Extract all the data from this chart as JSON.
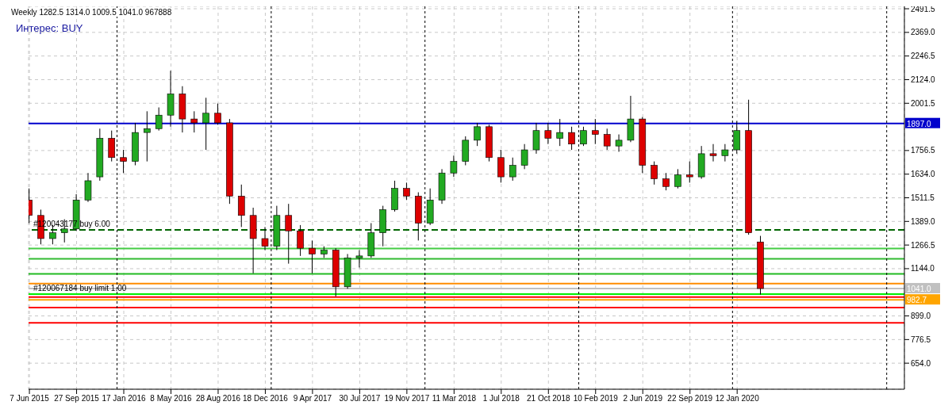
{
  "chart_data": {
    "type": "candlestick",
    "title": "Weekly  1282.5 1314.0 1009.5 1041.0 967888",
    "annotations": [
      "Интерес: BUY"
    ],
    "x": [
      "2015-06-07",
      "2015-07-05",
      "2015-08-02",
      "2015-08-30",
      "2015-09-27",
      "2015-10-25",
      "2015-11-22",
      "2015-12-20",
      "2016-01-17",
      "2016-02-14",
      "2016-03-13",
      "2016-04-10",
      "2016-05-08",
      "2016-06-05",
      "2016-07-03",
      "2016-07-31",
      "2016-08-28",
      "2016-09-25",
      "2016-10-23",
      "2016-11-20",
      "2016-12-18",
      "2017-01-15",
      "2017-02-12",
      "2017-03-12",
      "2017-04-09",
      "2017-05-07",
      "2017-06-04",
      "2017-07-02",
      "2017-07-30",
      "2017-08-27",
      "2017-09-24",
      "2017-10-22",
      "2017-11-19",
      "2017-12-17",
      "2018-01-14",
      "2018-02-11",
      "2018-03-11",
      "2018-04-08",
      "2018-05-06",
      "2018-06-03",
      "2018-07-01",
      "2018-07-29",
      "2018-08-26",
      "2018-09-23",
      "2018-10-21",
      "2018-11-18",
      "2018-12-16",
      "2019-01-13",
      "2019-02-10",
      "2019-03-10",
      "2019-04-07",
      "2019-05-05",
      "2019-06-02",
      "2019-06-30",
      "2019-07-28",
      "2019-08-25",
      "2019-09-22",
      "2019-10-20",
      "2019-11-17",
      "2019-12-15",
      "2020-01-12",
      "2020-02-09",
      "2020-03-08"
    ],
    "ohlc": [
      [
        1500,
        1560,
        1380,
        1420
      ],
      [
        1420,
        1450,
        1270,
        1300
      ],
      [
        1300,
        1370,
        1270,
        1330
      ],
      [
        1330,
        1400,
        1280,
        1350
      ],
      [
        1350,
        1530,
        1340,
        1500
      ],
      [
        1500,
        1640,
        1490,
        1600
      ],
      [
        1620,
        1870,
        1600,
        1820
      ],
      [
        1820,
        1860,
        1700,
        1720
      ],
      [
        1720,
        1760,
        1640,
        1700
      ],
      [
        1700,
        1900,
        1680,
        1850
      ],
      [
        1850,
        1960,
        1700,
        1870
      ],
      [
        1870,
        1980,
        1860,
        1940
      ],
      [
        1940,
        2170,
        1880,
        2050
      ],
      [
        2050,
        2090,
        1850,
        1920
      ],
      [
        1920,
        1960,
        1850,
        1900
      ],
      [
        1900,
        2030,
        1760,
        1950
      ],
      [
        1950,
        2000,
        1890,
        1900
      ],
      [
        1900,
        1920,
        1480,
        1520
      ],
      [
        1520,
        1580,
        1360,
        1420
      ],
      [
        1420,
        1460,
        1120,
        1300
      ],
      [
        1300,
        1360,
        1240,
        1260
      ],
      [
        1260,
        1470,
        1240,
        1420
      ],
      [
        1420,
        1480,
        1170,
        1340
      ],
      [
        1340,
        1370,
        1210,
        1250
      ],
      [
        1250,
        1290,
        1120,
        1220
      ],
      [
        1220,
        1260,
        1200,
        1240
      ],
      [
        1240,
        1250,
        1000,
        1050
      ],
      [
        1050,
        1220,
        1040,
        1200
      ],
      [
        1200,
        1240,
        1150,
        1210
      ],
      [
        1210,
        1380,
        1200,
        1330
      ],
      [
        1330,
        1470,
        1260,
        1450
      ],
      [
        1450,
        1600,
        1440,
        1560
      ],
      [
        1560,
        1590,
        1500,
        1520
      ],
      [
        1520,
        1540,
        1290,
        1380
      ],
      [
        1380,
        1560,
        1370,
        1500
      ],
      [
        1500,
        1660,
        1480,
        1640
      ],
      [
        1640,
        1730,
        1620,
        1700
      ],
      [
        1700,
        1830,
        1680,
        1810
      ],
      [
        1810,
        1900,
        1780,
        1880
      ],
      [
        1880,
        1890,
        1700,
        1720
      ],
      [
        1720,
        1760,
        1590,
        1620
      ],
      [
        1620,
        1720,
        1600,
        1680
      ],
      [
        1680,
        1790,
        1660,
        1760
      ],
      [
        1760,
        1900,
        1740,
        1860
      ],
      [
        1860,
        1900,
        1790,
        1820
      ],
      [
        1820,
        1920,
        1780,
        1850
      ],
      [
        1850,
        1880,
        1760,
        1790
      ],
      [
        1790,
        1880,
        1780,
        1860
      ],
      [
        1860,
        1920,
        1790,
        1840
      ],
      [
        1840,
        1870,
        1760,
        1780
      ],
      [
        1780,
        1840,
        1750,
        1810
      ],
      [
        1810,
        2040,
        1800,
        1920
      ],
      [
        1920,
        1930,
        1640,
        1680
      ],
      [
        1680,
        1700,
        1580,
        1610
      ],
      [
        1610,
        1640,
        1550,
        1570
      ],
      [
        1570,
        1660,
        1560,
        1630
      ],
      [
        1630,
        1700,
        1590,
        1620
      ],
      [
        1620,
        1780,
        1610,
        1740
      ],
      [
        1740,
        1790,
        1700,
        1730
      ],
      [
        1730,
        1790,
        1700,
        1760
      ],
      [
        1760,
        1910,
        1740,
        1860
      ],
      [
        1860,
        2020,
        1320,
        1330
      ],
      [
        1282.5,
        1314.0,
        1009.5,
        1041.0
      ]
    ],
    "colors": [
      "#dd0000",
      "#dd0000",
      "#22aa22",
      "#22aa22",
      "#22aa22",
      "#22aa22",
      "#22aa22",
      "#dd0000",
      "#dd0000",
      "#22aa22",
      "#22aa22",
      "#22aa22",
      "#22aa22",
      "#dd0000",
      "#dd0000",
      "#22aa22",
      "#dd0000",
      "#dd0000",
      "#dd0000",
      "#dd0000",
      "#dd0000",
      "#22aa22",
      "#dd0000",
      "#dd0000",
      "#dd0000",
      "#22aa22",
      "#dd0000",
      "#22aa22",
      "#22aa22",
      "#22aa22",
      "#22aa22",
      "#22aa22",
      "#dd0000",
      "#dd0000",
      "#22aa22",
      "#22aa22",
      "#22aa22",
      "#22aa22",
      "#22aa22",
      "#dd0000",
      "#dd0000",
      "#22aa22",
      "#22aa22",
      "#22aa22",
      "#dd0000",
      "#22aa22",
      "#dd0000",
      "#22aa22",
      "#dd0000",
      "#dd0000",
      "#22aa22",
      "#22aa22",
      "#dd0000",
      "#dd0000",
      "#dd0000",
      "#22aa22",
      "#dd0000",
      "#22aa22",
      "#dd0000",
      "#22aa22",
      "#22aa22",
      "#dd0000",
      "#dd0000"
    ],
    "xlim": [
      "2015-06-05",
      "2021-02-12"
    ],
    "xticks": [
      {
        "value": "2015-06-07",
        "label": "7 Jun 2015"
      },
      {
        "value": "2015-09-27",
        "label": "27 Sep 2015"
      },
      {
        "value": "2016-01-17",
        "label": "17 Jan 2016"
      },
      {
        "value": "2016-05-08",
        "label": "8 May 2016"
      },
      {
        "value": "2016-08-28",
        "label": "28 Aug 2016"
      },
      {
        "value": "2016-12-18",
        "label": "18 Dec 2016"
      },
      {
        "value": "2017-04-09",
        "label": "9 Apr 2017"
      },
      {
        "value": "2017-07-30",
        "label": "30 Jul 2017"
      },
      {
        "value": "2017-11-19",
        "label": "19 Nov 2017"
      },
      {
        "value": "2018-03-11",
        "label": "11 Mar 2018"
      },
      {
        "value": "2018-07-01",
        "label": "1 Jul 2018"
      },
      {
        "value": "2018-10-21",
        "label": "21 Oct 2018"
      },
      {
        "value": "2019-02-10",
        "label": "10 Feb 2019"
      },
      {
        "value": "2019-06-02",
        "label": "2 Jun 2019"
      },
      {
        "value": "2019-09-22",
        "label": "22 Sep 2019"
      },
      {
        "value": "2020-01-12",
        "label": "12 Jan 2020"
      }
    ],
    "ylim": [
      519,
      2504
    ],
    "yticks": [
      {
        "value": 654,
        "label": "654.0"
      },
      {
        "value": 776.5,
        "label": "776.5"
      },
      {
        "value": 899,
        "label": "899.0"
      },
      {
        "value": 1144,
        "label": "1144.0"
      },
      {
        "value": 1266.5,
        "label": "1266.5"
      },
      {
        "value": 1389,
        "label": "1389.0"
      },
      {
        "value": 1511.5,
        "label": "1511.5"
      },
      {
        "value": 1634,
        "label": "1634.0"
      },
      {
        "value": 1756.5,
        "label": "1756.5"
      },
      {
        "value": 2001.5,
        "label": "2001.5"
      },
      {
        "value": 2124,
        "label": "2124.0"
      },
      {
        "value": 2246.5,
        "label": "2246.5"
      },
      {
        "value": 2369,
        "label": "2369.0"
      },
      {
        "value": 2491.5,
        "label": "2491.5"
      }
    ],
    "grid": true,
    "ref_lines": [
      {
        "axis": "y",
        "value": 1897.0,
        "label": "1897.0",
        "color": "#0000cc"
      },
      {
        "axis": "y",
        "value": 1345,
        "label": "#120043177 buy 6.00",
        "color": "#006400",
        "line_style": "dashed"
      },
      {
        "axis": "y",
        "value": 1248,
        "color": "#44cc44"
      },
      {
        "axis": "y",
        "value": 1195,
        "color": "#33bb33"
      },
      {
        "axis": "y",
        "value": 1117,
        "color": "#22bb22"
      },
      {
        "axis": "y",
        "value": 1067,
        "color": "#ff8c00"
      },
      {
        "axis": "y",
        "value": 1041.0,
        "label": "1041.0",
        "color": "#c0c0c0"
      },
      {
        "axis": "y",
        "value": 1012,
        "label": "#120067184 buy limit 1.00",
        "color": "#00ee00"
      },
      {
        "axis": "y",
        "value": 997,
        "color": "#ff0000"
      },
      {
        "axis": "y",
        "value": 982.7,
        "label": "982.7",
        "color": "#ffa500"
      },
      {
        "axis": "y",
        "value": 942,
        "color": "#ff0000"
      },
      {
        "axis": "y",
        "value": 863,
        "color": "#ff0000"
      },
      {
        "axis": "x",
        "value": "2016-01-01",
        "color": "#000000",
        "line_style": "dotted"
      },
      {
        "axis": "x",
        "value": "2017-01-01",
        "color": "#000000",
        "line_style": "dotted"
      },
      {
        "axis": "x",
        "value": "2018-01-01",
        "color": "#000000",
        "line_style": "dotted"
      },
      {
        "axis": "x",
        "value": "2019-01-01",
        "color": "#000000",
        "line_style": "dotted"
      },
      {
        "axis": "x",
        "value": "2020-01-01",
        "color": "#000000",
        "line_style": "dotted"
      },
      {
        "axis": "x",
        "value": "2021-01-01",
        "color": "#000000",
        "line_style": "dotted"
      }
    ]
  }
}
